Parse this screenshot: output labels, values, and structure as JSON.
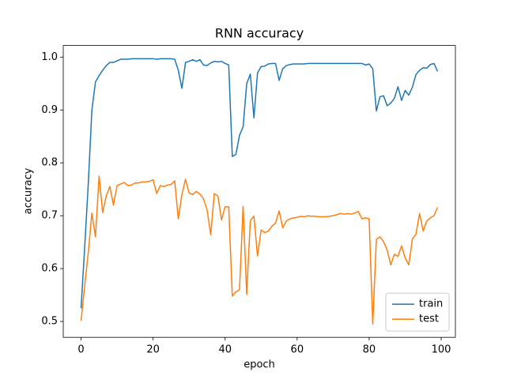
{
  "chart_data": {
    "type": "line",
    "title": "RNN accuracy",
    "x_label": "epoch",
    "y_label": "accuracy",
    "x": [
      0,
      1,
      2,
      3,
      4,
      5,
      6,
      7,
      8,
      9,
      10,
      11,
      12,
      13,
      14,
      15,
      16,
      17,
      18,
      19,
      20,
      21,
      22,
      23,
      24,
      25,
      26,
      27,
      28,
      29,
      30,
      31,
      32,
      33,
      34,
      35,
      36,
      37,
      38,
      39,
      40,
      41,
      42,
      43,
      44,
      45,
      46,
      47,
      48,
      49,
      50,
      51,
      52,
      53,
      54,
      55,
      56,
      57,
      58,
      59,
      60,
      61,
      62,
      63,
      64,
      65,
      66,
      67,
      68,
      69,
      70,
      71,
      72,
      73,
      74,
      75,
      76,
      77,
      78,
      79,
      80,
      81,
      82,
      83,
      84,
      85,
      86,
      87,
      88,
      89,
      90,
      91,
      92,
      93,
      94,
      95,
      96,
      97,
      98,
      99
    ],
    "series": [
      {
        "name": "train",
        "color": "#1f77b4",
        "values": [
          0.525,
          0.64,
          0.76,
          0.9,
          0.953,
          0.965,
          0.975,
          0.984,
          0.99,
          0.99,
          0.993,
          0.996,
          0.996,
          0.996,
          0.997,
          0.997,
          0.997,
          0.997,
          0.997,
          0.997,
          0.997,
          0.996,
          0.997,
          0.997,
          0.997,
          0.997,
          0.996,
          0.975,
          0.941,
          0.99,
          0.992,
          0.995,
          0.992,
          0.995,
          0.985,
          0.984,
          0.989,
          0.992,
          0.991,
          0.992,
          0.988,
          0.985,
          0.812,
          0.816,
          0.852,
          0.868,
          0.95,
          0.968,
          0.885,
          0.97,
          0.982,
          0.983,
          0.987,
          0.988,
          0.988,
          0.956,
          0.978,
          0.984,
          0.986,
          0.987,
          0.987,
          0.987,
          0.987,
          0.988,
          0.988,
          0.988,
          0.988,
          0.988,
          0.988,
          0.988,
          0.988,
          0.988,
          0.988,
          0.988,
          0.988,
          0.988,
          0.988,
          0.988,
          0.988,
          0.985,
          0.987,
          0.978,
          0.898,
          0.925,
          0.927,
          0.908,
          0.913,
          0.922,
          0.944,
          0.918,
          0.937,
          0.928,
          0.943,
          0.967,
          0.975,
          0.98,
          0.979,
          0.986,
          0.988,
          0.973
        ]
      },
      {
        "name": "test",
        "color": "#ff7f0e",
        "values": [
          0.501,
          0.567,
          0.63,
          0.705,
          0.66,
          0.775,
          0.706,
          0.738,
          0.755,
          0.72,
          0.757,
          0.76,
          0.763,
          0.757,
          0.758,
          0.762,
          0.762,
          0.764,
          0.764,
          0.765,
          0.768,
          0.742,
          0.757,
          0.755,
          0.758,
          0.759,
          0.766,
          0.694,
          0.74,
          0.769,
          0.743,
          0.74,
          0.746,
          0.741,
          0.732,
          0.711,
          0.664,
          0.742,
          0.737,
          0.692,
          0.717,
          0.717,
          0.548,
          0.556,
          0.56,
          0.718,
          0.551,
          0.691,
          0.699,
          0.624,
          0.673,
          0.668,
          0.671,
          0.68,
          0.686,
          0.709,
          0.677,
          0.69,
          0.694,
          0.696,
          0.697,
          0.699,
          0.698,
          0.7,
          0.699,
          0.699,
          0.698,
          0.698,
          0.698,
          0.699,
          0.7,
          0.702,
          0.704,
          0.703,
          0.704,
          0.703,
          0.705,
          0.708,
          0.694,
          0.696,
          0.694,
          0.495,
          0.655,
          0.66,
          0.651,
          0.635,
          0.607,
          0.627,
          0.623,
          0.643,
          0.62,
          0.607,
          0.656,
          0.665,
          0.704,
          0.671,
          0.69,
          0.696,
          0.7,
          0.716
        ]
      }
    ],
    "xlim": [
      -4.95,
      103.95
    ],
    "xticks": [
      0,
      20,
      40,
      60,
      80,
      100
    ],
    "ylim": [
      0.47,
      1.022
    ],
    "yticks": [
      0.5,
      0.6,
      0.7,
      0.8,
      0.9,
      {
        "value": 1,
        "label": "1.0"
      }
    ],
    "legend": "lower right"
  }
}
